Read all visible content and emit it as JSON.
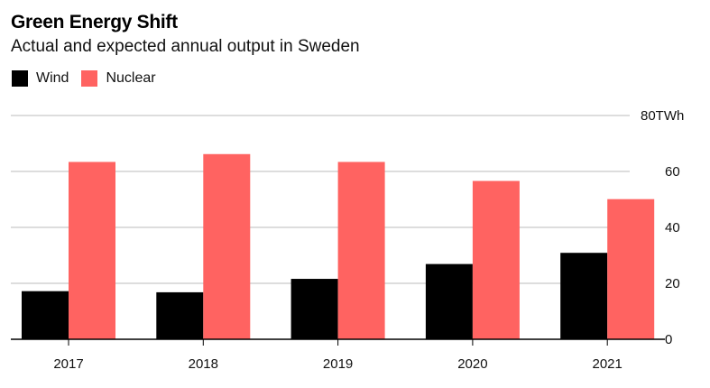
{
  "chart_data": {
    "type": "bar",
    "title": "Green Energy Shift",
    "subtitle": "Actual and expected annual output in Sweden",
    "categories": [
      "2017",
      "2018",
      "2019",
      "2020",
      "2021"
    ],
    "series": [
      {
        "name": "Wind",
        "color": "#000000",
        "values": [
          17.2,
          16.8,
          21.6,
          26.9,
          30.9
        ]
      },
      {
        "name": "Nuclear",
        "color": "#ff6361",
        "values": [
          63.4,
          66.2,
          63.4,
          56.6,
          50.1
        ]
      }
    ],
    "xlabel": "",
    "ylabel": "",
    "ylim": [
      0,
      80
    ],
    "yticks": [
      0,
      20,
      40,
      60,
      80
    ],
    "ytick_labels": [
      "0",
      "20",
      "40",
      "60",
      "80TWh"
    ],
    "y_axis_position": "right",
    "grid": true,
    "legend_position": "top-left"
  },
  "colors": {
    "grid": "#dddddd",
    "axis": "#000000"
  }
}
